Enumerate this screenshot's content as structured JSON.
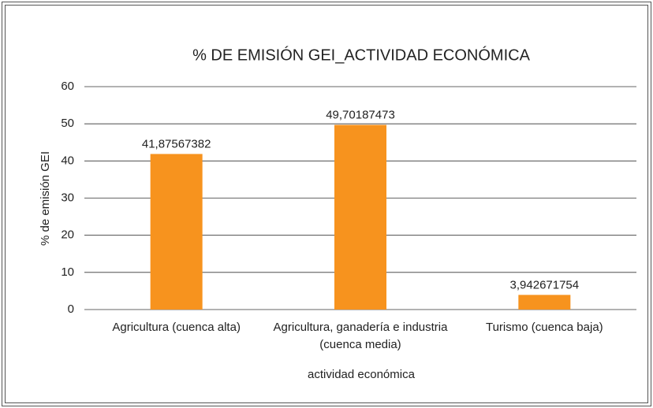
{
  "chart_data": {
    "type": "bar",
    "title": "% DE EMISIÓN GEI_ACTIVIDAD ECONÓMICA",
    "categories": [
      "Agricultura (cuenca alta)",
      "Agricultura, ganadería e industria (cuenca media)",
      "Turismo (cuenca baja)"
    ],
    "values": [
      41.87567382,
      49.70187473,
      3.942671754
    ],
    "value_labels": [
      "41,87567382",
      "49,70187473",
      "3,942671754"
    ],
    "color": "#f7931e",
    "x_label": "actividad económica",
    "y_label": "% de emisión GEI",
    "ylim": [
      0,
      60
    ],
    "yticks": [
      0,
      10,
      20,
      30,
      40,
      50,
      60
    ],
    "grid": true
  }
}
